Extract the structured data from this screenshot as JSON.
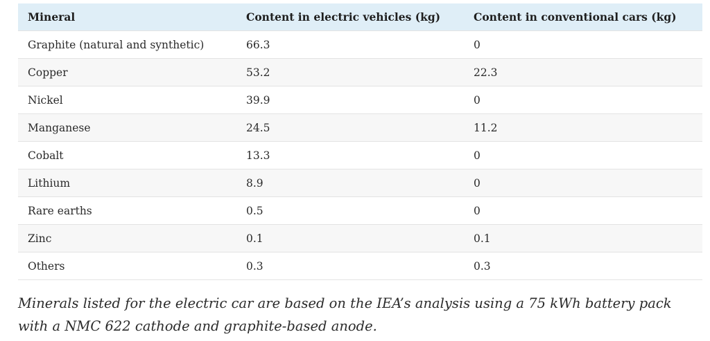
{
  "table": {
    "headers": [
      "Mineral",
      "Content in electric vehicles (kg)",
      "Content in conventional cars (kg)"
    ],
    "rows": [
      [
        "Graphite (natural and synthetic)",
        "66.3",
        "0"
      ],
      [
        "Copper",
        "53.2",
        "22.3"
      ],
      [
        "Nickel",
        "39.9",
        "0"
      ],
      [
        "Manganese",
        "24.5",
        "11.2"
      ],
      [
        "Cobalt",
        "13.3",
        "0"
      ],
      [
        "Lithium",
        "8.9",
        "0"
      ],
      [
        "Rare earths",
        "0.5",
        "0"
      ],
      [
        "Zinc",
        "0.1",
        "0.1"
      ],
      [
        "Others",
        "0.3",
        "0.3"
      ]
    ]
  },
  "caption": "Minerals listed for the electric car are based on the IEA’s analysis using a 75 kWh battery pack with a NMC 622 cathode and graphite-based anode."
}
